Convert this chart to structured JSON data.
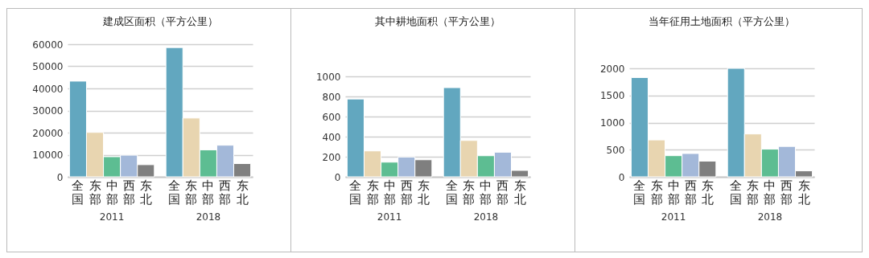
{
  "chart_data": [
    {
      "type": "bar",
      "title": "建成区面积（平方公里）",
      "categories": [
        "2011",
        "2018"
      ],
      "series": [
        {
          "name": "全国",
          "color": "#62a7bf",
          "values": [
            43300,
            58500
          ]
        },
        {
          "name": "东部",
          "color": "#e8d5b0",
          "values": [
            20100,
            26600
          ]
        },
        {
          "name": "中部",
          "color": "#5dbd92",
          "values": [
            9100,
            12200
          ]
        },
        {
          "name": "西部",
          "color": "#a3b8d9",
          "values": [
            9800,
            14300
          ]
        },
        {
          "name": "东北",
          "color": "#7f7f7f",
          "values": [
            5500,
            6000
          ]
        }
      ],
      "ylim": [
        0,
        60000
      ],
      "yticks": [
        0,
        10000,
        20000,
        30000,
        40000,
        50000,
        60000
      ],
      "grid": "y",
      "legend": false
    },
    {
      "type": "bar",
      "title": "其中耕地面积（平方公里）",
      "categories": [
        "2011",
        "2018"
      ],
      "series": [
        {
          "name": "全国",
          "color": "#62a7bf",
          "values": [
            775,
            888
          ]
        },
        {
          "name": "东部",
          "color": "#e8d5b0",
          "values": [
            258,
            362
          ]
        },
        {
          "name": "中部",
          "color": "#5dbd92",
          "values": [
            146,
            210
          ]
        },
        {
          "name": "西部",
          "color": "#a3b8d9",
          "values": [
            197,
            245
          ]
        },
        {
          "name": "东北",
          "color": "#7f7f7f",
          "values": [
            170,
            64
          ]
        }
      ],
      "ylim": [
        0,
        1000
      ],
      "yticks": [
        0,
        200,
        400,
        600,
        800,
        1000
      ],
      "grid": "y",
      "legend": false
    },
    {
      "type": "bar",
      "title": "当年征用土地面积（平方公里）",
      "categories": [
        "2011",
        "2018"
      ],
      "series": [
        {
          "name": "全国",
          "color": "#62a7bf",
          "values": [
            1830,
            2000
          ]
        },
        {
          "name": "东部",
          "color": "#e8d5b0",
          "values": [
            680,
            790
          ]
        },
        {
          "name": "中部",
          "color": "#5dbd92",
          "values": [
            390,
            510
          ]
        },
        {
          "name": "西部",
          "color": "#a3b8d9",
          "values": [
            430,
            560
          ]
        },
        {
          "name": "东北",
          "color": "#7f7f7f",
          "values": [
            290,
            110
          ]
        }
      ],
      "ylim": [
        0,
        2000
      ],
      "yticks": [
        0,
        500,
        1000,
        1500,
        2000
      ],
      "grid": "y",
      "legend": false
    }
  ]
}
